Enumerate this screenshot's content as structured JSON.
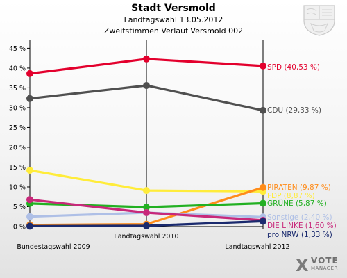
{
  "header": {
    "title": "Stadt Versmold",
    "subtitle": "Landtagswahl 13.05.2012",
    "subtitle2": "Zweitstimmen Verlauf Versmold 002"
  },
  "logo": {
    "mark": "X",
    "word1": "VOTE",
    "word2": "MANAGER",
    "icon": "votemanager-logo"
  },
  "emblem": {
    "icon": "nrw-coat-of-arms-icon"
  },
  "chart_data": {
    "type": "line",
    "x": [
      "Bundestagswahl 2009",
      "Landtagswahl 2010",
      "Landtagswahl 2012"
    ],
    "ylim": [
      0,
      47
    ],
    "yticks": [
      0,
      5,
      10,
      15,
      20,
      25,
      30,
      35,
      40,
      45
    ],
    "ytick_labels": [
      "0 %",
      "5 %",
      "10 %",
      "15 %",
      "20 %",
      "25 %",
      "30 %",
      "35 %",
      "40 %",
      "45 %"
    ],
    "grid": false,
    "series": [
      {
        "name": "SPD",
        "label": "SPD (40,53 %)",
        "color": "#e3002d",
        "values": [
          38.6,
          42.3,
          40.53
        ]
      },
      {
        "name": "CDU",
        "label": "CDU (29,33 %)",
        "color": "#505050",
        "values": [
          32.3,
          35.6,
          29.33
        ]
      },
      {
        "name": "FDP",
        "label": "FDP (8,87 %)",
        "color": "#ffec3a",
        "values": [
          14.2,
          9.1,
          8.87
        ]
      },
      {
        "name": "PIRATEN",
        "label": "PIRATEN (9,87 %)",
        "color": "#ff8c1a",
        "values": [
          0.4,
          0.6,
          9.87
        ]
      },
      {
        "name": "GRÜNE",
        "label": "GRÜNE (5,87 %)",
        "color": "#22b022",
        "values": [
          5.8,
          4.9,
          5.87
        ]
      },
      {
        "name": "Sonstige",
        "label": "Sonstige (2,40 %)",
        "color": "#aebfe6",
        "values": [
          2.5,
          3.5,
          2.4
        ]
      },
      {
        "name": "DIE LINKE",
        "label": "DIE LINKE (1,60 %)",
        "color": "#c8287a",
        "values": [
          6.8,
          3.5,
          1.6
        ]
      },
      {
        "name": "pro NRW",
        "label": "pro NRW (1,33 %)",
        "color": "#1a2a6e",
        "values": [
          0.1,
          0.2,
          1.33
        ]
      }
    ]
  }
}
